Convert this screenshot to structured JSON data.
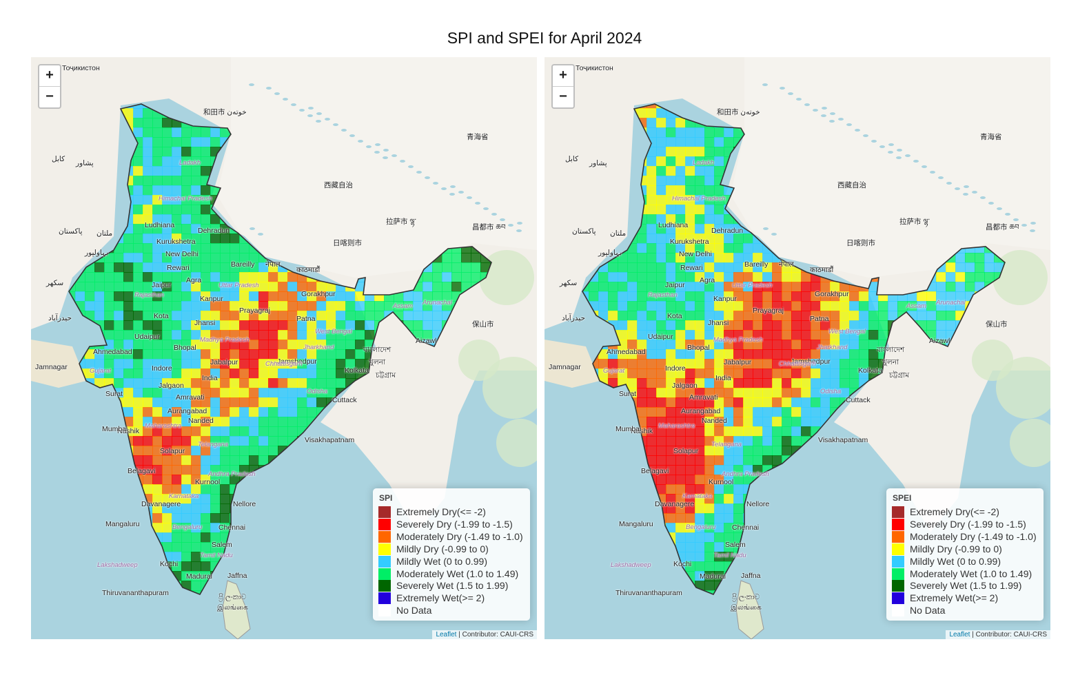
{
  "title": "SPI and SPEI for April 2024",
  "attribution": {
    "leaflet": "Leaflet",
    "contributor": "| Contributor: CAUI-CRS"
  },
  "zoom": {
    "in": "+",
    "out": "−"
  },
  "maps": [
    {
      "id": "spi",
      "legend_title": "SPI"
    },
    {
      "id": "spei",
      "legend_title": "SPEI"
    }
  ],
  "legend_items": [
    {
      "label": "Extremely Dry(<= -2)",
      "color": "#a52a2a"
    },
    {
      "label": "Severely Dry (-1.99 to -1.5)",
      "color": "#ff0000"
    },
    {
      "label": "Moderately Dry (-1.49 to -1.0)",
      "color": "#ff6600"
    },
    {
      "label": "Mildly Dry (-0.99 to 0)",
      "color": "#ffff00"
    },
    {
      "label": "Mildly Wet (0 to 0.99)",
      "color": "#33ccff"
    },
    {
      "label": "Moderately Wet (1.0 to 1.49)",
      "color": "#00ee66"
    },
    {
      "label": "Severely Wet (1.5 to 1.99)",
      "color": "#006600"
    },
    {
      "label": "Extremely Wet(>= 2)",
      "color": "#2200dd"
    },
    {
      "label": "No Data",
      "color": "#ffffff"
    }
  ],
  "places": [
    "Тоҷикистон",
    "和田市 خوتەن",
    "青海省",
    "西藏自治",
    "拉萨市 ལྷ་",
    "日喀则市",
    "昌都市 ཆབ",
    "Ludhiana",
    "Dehradun",
    "Kurukshetra",
    "New Delhi",
    "Bareilly",
    "Rewari",
    "Agra",
    "Jaipur",
    "Kanpur",
    "Uttar Pradesh",
    "Prayagraj",
    "Gorakhpur",
    "Patna",
    "Jhansi",
    "Kota",
    "Udaipur",
    "Ahmedabad",
    "Bhopal",
    "Jabalpur",
    "Jamshedpur",
    "Kolkata",
    "Indore",
    "India",
    "Jalgaon",
    "Surat",
    "Amravati",
    "Aurangabad",
    "Nashik",
    "Nanded",
    "Mumbai",
    "Cuttack",
    "Visakhapatnam",
    "Solapur",
    "Belagavi",
    "Kurnool",
    "Davanagere",
    "Nellore",
    "Mangaluru",
    "Bengaluru",
    "Chennai",
    "Kochi",
    "Madurai",
    "Salem",
    "Jaffna",
    "Thiruvananthapuram",
    "Jamnagar",
    "Lakshadweep",
    "ප්‍රි ලංකාව",
    "இலங்கை",
    "नेपाल",
    "काठमाडौं",
    "বাংলাদেশ",
    "খুলনা",
    "চট্টগ্রাম",
    "保山市",
    "Assam",
    "Arunachal",
    "Aizawl",
    "پاکستان",
    "کابل",
    "پشاور",
    "ملتان",
    "بہاولپور",
    "سکھر",
    "حیدرآباد",
    "Himachal Pradesh",
    "Ladakh",
    "Rajasthan",
    "Maharashtra",
    "Telangana",
    "Andhra Pradesh",
    "Tamil Nadu",
    "Karnataka",
    "Chhattisgarh",
    "Jharkhand",
    "West Bengal",
    "Madhya Pradesh",
    "Odisha",
    "Gujarat"
  ]
}
